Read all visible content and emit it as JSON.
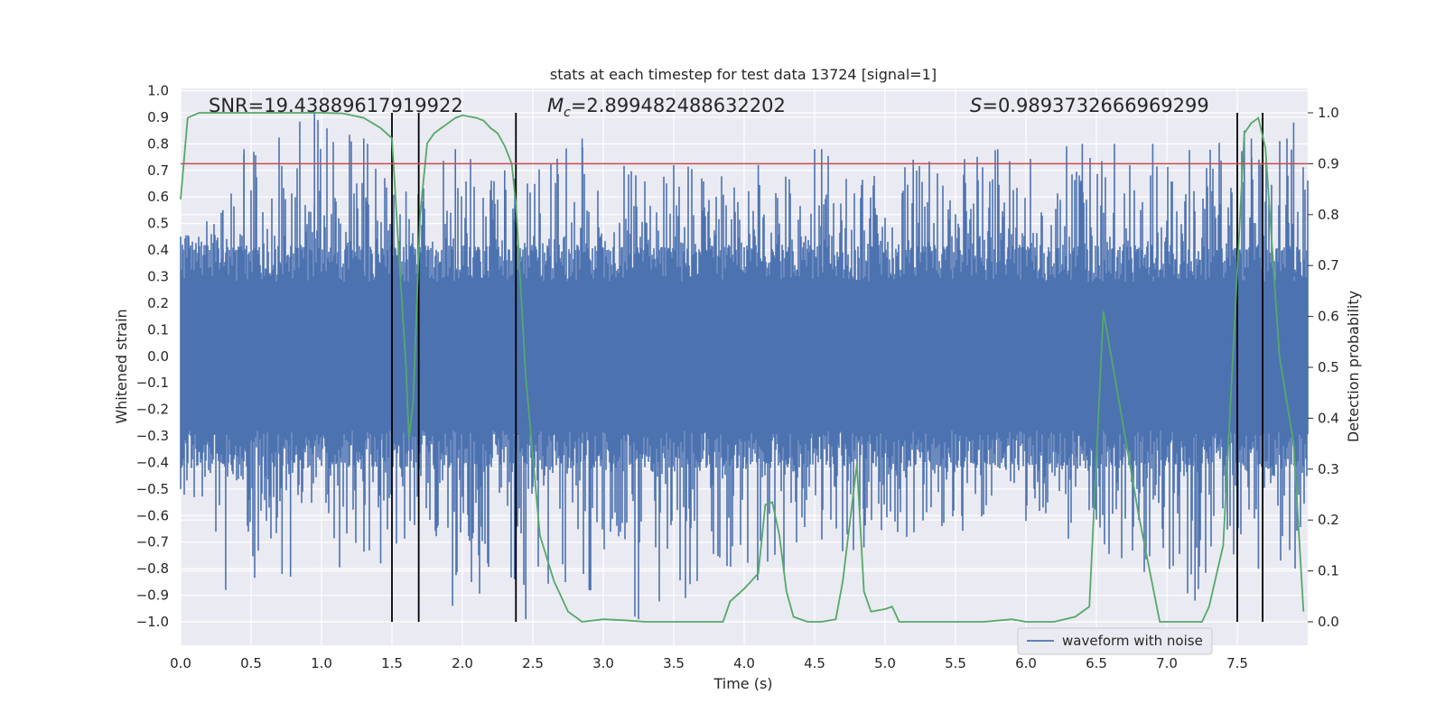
{
  "chart_data": {
    "type": "line",
    "title": "stats at each timestep for test data 13724 [signal=1]",
    "xlabel": "Time (s)",
    "ylabel_left": "Whitened strain",
    "ylabel_right": "Detection probability",
    "xlim": [
      0.0,
      8.0
    ],
    "ylim_left": [
      -1.0,
      1.0
    ],
    "ylim_right": [
      0.0,
      1.0
    ],
    "x_ticks": [
      0.0,
      0.5,
      1.0,
      1.5,
      2.0,
      2.5,
      3.0,
      3.5,
      4.0,
      4.5,
      5.0,
      5.5,
      6.0,
      6.5,
      7.0,
      7.5
    ],
    "x_tick_labels": [
      "0.0",
      "0.5",
      "1.0",
      "1.5",
      "2.0",
      "2.5",
      "3.0",
      "3.5",
      "4.0",
      "4.5",
      "5.0",
      "5.5",
      "6.0",
      "6.5",
      "7.0",
      "7.5"
    ],
    "y_left_ticks": [
      1.0,
      0.9,
      0.8,
      0.7,
      0.6,
      0.5,
      0.4,
      0.3,
      0.2,
      0.1,
      0.0,
      -0.1,
      -0.2,
      -0.3,
      -0.4,
      -0.5,
      -0.6,
      -0.7,
      -0.8,
      -0.9,
      -1.0
    ],
    "y_left_tick_labels": [
      "1.0",
      "0.9",
      "0.8",
      "0.7",
      "0.6",
      "0.5",
      "0.4",
      "0.3",
      "0.2",
      "0.1",
      "0.0",
      "−0.1",
      "−0.2",
      "−0.3",
      "−0.4",
      "−0.5",
      "−0.6",
      "−0.7",
      "−0.8",
      "−0.9",
      "−1.0"
    ],
    "y_right_ticks": [
      1.0,
      0.9,
      0.8,
      0.7,
      0.6,
      0.5,
      0.4,
      0.3,
      0.2,
      0.1,
      0.0
    ],
    "y_right_tick_labels": [
      "1.0",
      "0.9",
      "0.8",
      "0.7",
      "0.6",
      "0.5",
      "0.4",
      "0.3",
      "0.2",
      "0.1",
      "0.0"
    ],
    "annotations": {
      "snr": "SNR=19.43889617919922",
      "mc_symbol": "M",
      "mc_subscript": "c",
      "mc_value": "=2.899482488632202",
      "s_symbol": "S",
      "s_value": "=0.9893732666969299"
    },
    "threshold": {
      "value_right_axis": 0.9,
      "color": "#c44e52"
    },
    "vertical_lines_x": [
      1.5,
      1.69,
      2.38,
      7.5,
      7.68
    ],
    "legend": [
      {
        "label": "waveform with noise",
        "color": "#4c72b0"
      }
    ],
    "series": [
      {
        "name": "waveform with noise",
        "axis": "left",
        "color": "#4c72b0",
        "note": "dense noisy strain; body mostly within ±0.45 with spikes",
        "envelope_upper_approx": [
          [
            0.0,
            0.45
          ],
          [
            0.3,
            0.55
          ],
          [
            0.45,
            0.78
          ],
          [
            0.95,
            0.92
          ],
          [
            1.3,
            0.82
          ],
          [
            1.6,
            0.62
          ],
          [
            1.95,
            0.78
          ],
          [
            2.3,
            0.7
          ],
          [
            2.85,
            0.82
          ],
          [
            3.5,
            0.72
          ],
          [
            4.1,
            0.72
          ],
          [
            4.5,
            0.78
          ],
          [
            4.55,
            0.78
          ],
          [
            5.2,
            0.74
          ],
          [
            5.8,
            0.78
          ],
          [
            6.4,
            0.8
          ],
          [
            6.9,
            0.8
          ],
          [
            7.55,
            0.85
          ],
          [
            7.6,
            0.82
          ],
          [
            7.9,
            0.88
          ]
        ],
        "envelope_lower_approx": [
          [
            0.0,
            -0.5
          ],
          [
            0.32,
            -0.88
          ],
          [
            0.72,
            -0.82
          ],
          [
            0.78,
            -0.83
          ],
          [
            1.42,
            -0.78
          ],
          [
            1.93,
            -0.94
          ],
          [
            2.37,
            -0.84
          ],
          [
            2.45,
            -0.99
          ],
          [
            2.9,
            -0.88
          ],
          [
            3.25,
            -0.99
          ],
          [
            4.85,
            -0.72
          ],
          [
            6.0,
            -0.62
          ],
          [
            7.2,
            -0.92
          ],
          [
            7.65,
            -0.8
          ]
        ]
      },
      {
        "name": "Detection probability",
        "axis": "right",
        "color": "#55a868",
        "x": [
          0.0,
          0.05,
          0.13,
          0.25,
          0.5,
          0.75,
          1.0,
          1.15,
          1.3,
          1.42,
          1.5,
          1.55,
          1.6,
          1.62,
          1.65,
          1.7,
          1.75,
          1.8,
          1.85,
          1.9,
          1.95,
          2.0,
          2.1,
          2.15,
          2.2,
          2.25,
          2.3,
          2.35,
          2.38,
          2.45,
          2.55,
          2.65,
          2.75,
          2.85,
          3.0,
          3.15,
          3.3,
          3.5,
          3.7,
          3.8,
          3.85,
          3.9,
          4.0,
          4.1,
          4.15,
          4.2,
          4.25,
          4.3,
          4.35,
          4.45,
          4.55,
          4.65,
          4.7,
          4.8,
          4.85,
          4.9,
          5.0,
          5.05,
          5.1,
          5.2,
          5.3,
          5.5,
          5.7,
          5.9,
          6.0,
          6.1,
          6.2,
          6.35,
          6.45,
          6.55,
          6.6,
          6.8,
          6.95,
          7.1,
          7.2,
          7.25,
          7.3,
          7.4,
          7.55,
          7.6,
          7.65,
          7.7,
          7.8,
          7.9,
          7.97
        ],
        "y": [
          0.83,
          0.99,
          1.0,
          1.0,
          1.0,
          1.0,
          1.0,
          0.999,
          0.99,
          0.97,
          0.95,
          0.72,
          0.5,
          0.36,
          0.43,
          0.8,
          0.94,
          0.96,
          0.97,
          0.98,
          0.99,
          0.995,
          0.99,
          0.985,
          0.97,
          0.96,
          0.935,
          0.9,
          0.82,
          0.48,
          0.17,
          0.08,
          0.02,
          0.0,
          0.005,
          0.003,
          0.0,
          0.0,
          0.0,
          0.0,
          0.0,
          0.04,
          0.065,
          0.095,
          0.23,
          0.235,
          0.17,
          0.06,
          0.01,
          0.0,
          0.0,
          0.005,
          0.08,
          0.31,
          0.06,
          0.02,
          0.025,
          0.03,
          0.0,
          0.0,
          0.0,
          0.0,
          0.0,
          0.005,
          0.0,
          0.0,
          0.0,
          0.01,
          0.03,
          0.61,
          0.53,
          0.21,
          0.0,
          0.0,
          0.0,
          0.0,
          0.03,
          0.15,
          0.96,
          0.98,
          0.99,
          0.93,
          0.52,
          0.35,
          0.02
        ]
      }
    ]
  }
}
